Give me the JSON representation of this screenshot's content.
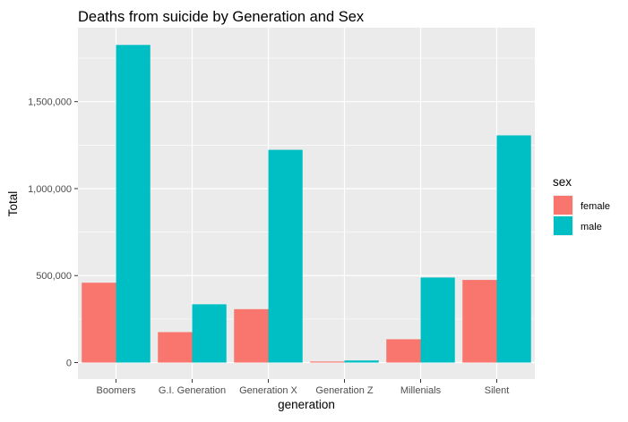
{
  "chart_data": {
    "type": "bar",
    "title": "Deaths from suicide by Generation and Sex",
    "xlabel": "generation",
    "ylabel": "Total",
    "categories": [
      "Boomers",
      "G.I. Generation",
      "Generation X",
      "Generation Z",
      "Millenials",
      "Silent"
    ],
    "series": [
      {
        "name": "female",
        "color": "#F8766D",
        "values": [
          459000,
          175000,
          307000,
          6000,
          134000,
          475000
        ]
      },
      {
        "name": "male",
        "color": "#00BFC4",
        "values": [
          1826000,
          335000,
          1223000,
          12000,
          489000,
          1306000
        ]
      }
    ],
    "yticks": [
      0,
      500000,
      1000000,
      1500000
    ],
    "ytick_labels": [
      "0",
      "500,000",
      "1,000,000",
      "1,500,000"
    ],
    "ylim": [
      -95000,
      1925000
    ],
    "legend": {
      "title": "sex",
      "position": "right"
    },
    "grid": true,
    "panel_color": "#EBEBEB",
    "grid_color": "#FFFFFF"
  }
}
